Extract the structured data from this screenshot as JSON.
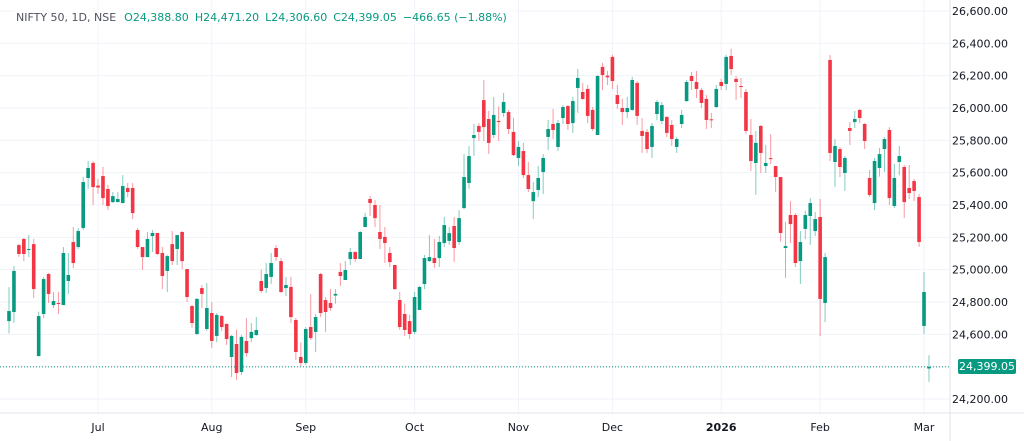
{
  "legend": {
    "symbol": "NIFTY 50, 1D, NSE",
    "open": "O24,388.80",
    "high": "H24,471.20",
    "low": "L24,306.60",
    "close": "C24,399.05",
    "change": "−466.65 (−1.88%)"
  },
  "last_price_label": "24,399.05",
  "colors": {
    "up": "#089981",
    "down": "#f23645",
    "grid": "#f0f3fa",
    "text": "#131722"
  },
  "chart_data": {
    "type": "candlestick",
    "title": "NIFTY 50, 1D, NSE",
    "ylim": [
      24200,
      26600
    ],
    "last_price": 24399.05,
    "yticks": [
      {
        "value": 26600,
        "label": "26,600.00"
      },
      {
        "value": 26400,
        "label": "26,400.00"
      },
      {
        "value": 26200,
        "label": "26,200.00"
      },
      {
        "value": 26000,
        "label": "26,000.00"
      },
      {
        "value": 25800,
        "label": "25,800.00"
      },
      {
        "value": 25600,
        "label": "25,600.00"
      },
      {
        "value": 25400,
        "label": "25,400.00"
      },
      {
        "value": 25200,
        "label": "25,200.00"
      },
      {
        "value": 25000,
        "label": "25,000.00"
      },
      {
        "value": 24800,
        "label": "24,800.00"
      },
      {
        "value": 24600,
        "label": "24,600.00"
      },
      {
        "value": 24200,
        "label": "24,200.00"
      }
    ],
    "xticks": [
      {
        "index": 18,
        "label": "Jul"
      },
      {
        "index": 41,
        "label": "Aug"
      },
      {
        "index": 60,
        "label": "Sep"
      },
      {
        "index": 82,
        "label": "Oct"
      },
      {
        "index": 103,
        "label": "Nov"
      },
      {
        "index": 122,
        "label": "Dec"
      },
      {
        "index": 144,
        "label": "2026",
        "bold": true
      },
      {
        "index": 164,
        "label": "Feb"
      },
      {
        "index": 185,
        "label": "Mar"
      }
    ],
    "ohlc_fields": [
      "open",
      "high",
      "low",
      "close"
    ],
    "candles": [
      [
        24682,
        24892,
        24606,
        24744
      ],
      [
        24738,
        25023,
        24670,
        24992
      ],
      [
        25152,
        25160,
        25080,
        25097
      ],
      [
        25190,
        25196,
        25053,
        25097
      ],
      [
        25122,
        25214,
        25078,
        25128
      ],
      [
        25158,
        25190,
        24825,
        24880
      ],
      [
        24466,
        24740,
        24460,
        24713
      ],
      [
        24726,
        24954,
        24700,
        24942
      ],
      [
        24973,
        24980,
        24794,
        24850
      ],
      [
        24781,
        24862,
        24763,
        24806
      ],
      [
        24794,
        24862,
        24726,
        24788
      ],
      [
        24781,
        25140,
        24781,
        25103
      ],
      [
        24930,
        25103,
        24850,
        24967
      ],
      [
        25171,
        25264,
        25010,
        25041
      ],
      [
        25140,
        25258,
        25128,
        25239
      ],
      [
        25258,
        25573,
        25245,
        25542
      ],
      [
        25567,
        25672,
        25500,
        25629
      ],
      [
        25660,
        25672,
        25400,
        25511
      ],
      [
        25520,
        25560,
        25470,
        25508
      ],
      [
        25579,
        25635,
        25400,
        25443
      ],
      [
        25499,
        25524,
        25369,
        25394
      ],
      [
        25418,
        25480,
        25412,
        25455
      ],
      [
        25418,
        25480,
        25418,
        25437
      ],
      [
        25412,
        25585,
        25412,
        25517
      ],
      [
        25505,
        25536,
        25449,
        25480
      ],
      [
        25505,
        25536,
        25313,
        25350
      ],
      [
        25245,
        25258,
        25128,
        25140
      ],
      [
        25140,
        25140,
        24998,
        25078
      ],
      [
        25078,
        25233,
        25078,
        25190
      ],
      [
        25208,
        25245,
        25109,
        25227
      ],
      [
        25227,
        25227,
        25091,
        25097
      ],
      [
        25103,
        25140,
        24880,
        24961
      ],
      [
        24992,
        25091,
        24862,
        25084
      ],
      [
        25158,
        25239,
        25029,
        25053
      ],
      [
        25128,
        25196,
        25029,
        25214
      ],
      [
        25233,
        25239,
        25004,
        25053
      ],
      [
        25004,
        25004,
        24800,
        24831
      ],
      [
        24775,
        24782,
        24640,
        24670
      ],
      [
        24602,
        24825,
        24596,
        24819
      ],
      [
        24886,
        24905,
        24763,
        24850
      ],
      [
        24633,
        24917,
        24621,
        24763
      ],
      [
        24732,
        24800,
        24515,
        24559
      ],
      [
        24590,
        24732,
        24552,
        24720
      ],
      [
        24713,
        24720,
        24621,
        24645
      ],
      [
        24664,
        24670,
        24534,
        24571
      ],
      [
        24460,
        24596,
        24336,
        24590
      ],
      [
        24540,
        24630,
        24318,
        24361
      ],
      [
        24367,
        24596,
        24348,
        24584
      ],
      [
        24559,
        24700,
        24460,
        24484
      ],
      [
        24577,
        24670,
        24552,
        24615
      ],
      [
        24596,
        24707,
        24590,
        24627
      ],
      [
        24930,
        25000,
        24856,
        24868
      ],
      [
        24887,
        25041,
        24856,
        24973
      ],
      [
        24955,
        25103,
        24911,
        25041
      ],
      [
        25134,
        25152,
        25053,
        25078
      ],
      [
        25053,
        25072,
        24856,
        24862
      ],
      [
        24886,
        24955,
        24837,
        24905
      ],
      [
        24893,
        24955,
        24670,
        24707
      ],
      [
        24689,
        24701,
        24442,
        24491
      ],
      [
        24460,
        24550,
        24404,
        24423
      ],
      [
        24423,
        24645,
        24411,
        24633
      ],
      [
        24645,
        24850,
        24565,
        24577
      ],
      [
        24615,
        24726,
        24491,
        24707
      ],
      [
        24973,
        24980,
        24707,
        24732
      ],
      [
        24812,
        24831,
        24615,
        24738
      ],
      [
        24794,
        24880,
        24745,
        24763
      ],
      [
        24840,
        24880,
        24790,
        24850
      ],
      [
        24986,
        25041,
        24899,
        24961
      ],
      [
        24936,
        25053,
        24936,
        24998
      ],
      [
        25066,
        25134,
        25029,
        25109
      ],
      [
        25109,
        25115,
        25047,
        25066
      ],
      [
        25066,
        25239,
        25066,
        25233
      ],
      [
        25264,
        25350,
        25264,
        25326
      ],
      [
        25437,
        25456,
        25332,
        25412
      ],
      [
        25400,
        25430,
        25264,
        25319
      ],
      [
        25233,
        25400,
        25128,
        25190
      ],
      [
        25202,
        25264,
        25041,
        25165
      ],
      [
        25103,
        25140,
        25016,
        25047
      ],
      [
        25029,
        25029,
        24874,
        24880
      ],
      [
        24812,
        24862,
        24627,
        24645
      ],
      [
        24726,
        24790,
        24590,
        24627
      ],
      [
        24682,
        24720,
        24571,
        24602
      ],
      [
        24615,
        24862,
        24602,
        24831
      ],
      [
        24751,
        24899,
        24751,
        24893
      ],
      [
        24911,
        25091,
        24880,
        25072
      ],
      [
        25053,
        25214,
        25047,
        25078
      ],
      [
        25072,
        25190,
        25010,
        25041
      ],
      [
        25072,
        25208,
        25016,
        25171
      ],
      [
        25165,
        25326,
        25140,
        25276
      ],
      [
        25178,
        25264,
        25153,
        25226
      ],
      [
        25270,
        25326,
        25047,
        25134
      ],
      [
        25171,
        25368,
        25153,
        25319
      ],
      [
        25381,
        25715,
        25375,
        25573
      ],
      [
        25536,
        25764,
        25500,
        25703
      ],
      [
        25814,
        25901,
        25703,
        25833
      ],
      [
        25889,
        25907,
        25796,
        25852
      ],
      [
        26049,
        26173,
        25796,
        25882
      ],
      [
        25932,
        25982,
        25716,
        25784
      ],
      [
        25833,
        26068,
        25815,
        25957
      ],
      [
        25920,
        26010,
        25796,
        25913
      ],
      [
        25969,
        26093,
        25944,
        26037
      ],
      [
        25975,
        25988,
        25839,
        25870
      ],
      [
        25852,
        25939,
        25703,
        25709
      ],
      [
        25691,
        25796,
        25641,
        25759
      ],
      [
        25734,
        25784,
        25567,
        25585
      ],
      [
        25585,
        25667,
        25480,
        25499
      ],
      [
        25424,
        25542,
        25313,
        25480
      ],
      [
        25493,
        25641,
        25449,
        25567
      ],
      [
        25604,
        25715,
        25468,
        25691
      ],
      [
        25821,
        25926,
        25740,
        25870
      ],
      [
        25901,
        25994,
        25808,
        25864
      ],
      [
        25759,
        25926,
        25734,
        25907
      ],
      [
        25938,
        26018,
        25901,
        26006
      ],
      [
        26012,
        26018,
        25864,
        25901
      ],
      [
        25907,
        26068,
        25846,
        26043
      ],
      [
        26124,
        26241,
        25969,
        26186
      ],
      [
        26099,
        26155,
        26050,
        26056
      ],
      [
        26118,
        26142,
        25907,
        25951
      ],
      [
        25988,
        26006,
        25858,
        25870
      ],
      [
        25833,
        26204,
        25833,
        26198
      ],
      [
        26254,
        26279,
        26111,
        26204
      ],
      [
        26200,
        26230,
        26142,
        26190
      ],
      [
        26316,
        26329,
        26118,
        26167
      ],
      [
        26080,
        26142,
        25994,
        26025
      ],
      [
        26000,
        26056,
        25895,
        25975
      ],
      [
        25975,
        26068,
        25938,
        26000
      ],
      [
        25988,
        26193,
        25982,
        26173
      ],
      [
        26155,
        26167,
        25895,
        25951
      ],
      [
        25858,
        25938,
        25722,
        25827
      ],
      [
        25852,
        25870,
        25722,
        25746
      ],
      [
        25759,
        25907,
        25691,
        25889
      ],
      [
        25963,
        26049,
        25926,
        26037
      ],
      [
        25920,
        26037,
        25901,
        26018
      ],
      [
        25944,
        25951,
        25820,
        25846
      ],
      [
        25895,
        25926,
        25765,
        25808
      ],
      [
        25759,
        25821,
        25722,
        25808
      ],
      [
        25901,
        25988,
        25876,
        25957
      ],
      [
        26043,
        26173,
        26037,
        26161
      ],
      [
        26198,
        26223,
        26111,
        26167
      ],
      [
        26161,
        26229,
        26062,
        26118
      ],
      [
        26111,
        26124,
        26000,
        26031
      ],
      [
        26056,
        26080,
        25870,
        25926
      ],
      [
        25930,
        25970,
        25876,
        25927
      ],
      [
        26006,
        26142,
        26000,
        26118
      ],
      [
        26161,
        26180,
        26111,
        26136
      ],
      [
        26149,
        26329,
        26111,
        26316
      ],
      [
        26322,
        26366,
        26204,
        26241
      ],
      [
        26180,
        26199,
        26050,
        26161
      ],
      [
        26136,
        26186,
        26062,
        26130
      ],
      [
        26099,
        26118,
        25840,
        25858
      ],
      [
        25833,
        25932,
        25610,
        25672
      ],
      [
        25660,
        25858,
        25463,
        25784
      ],
      [
        25889,
        25895,
        25598,
        25722
      ],
      [
        25641,
        25771,
        25598,
        25660
      ],
      [
        25690,
        25839,
        25654,
        25684
      ],
      [
        25641,
        25641,
        25480,
        25573
      ],
      [
        25573,
        25573,
        25173,
        25227
      ],
      [
        25134,
        25295,
        24949,
        25146
      ],
      [
        25338,
        25424,
        25165,
        25282
      ],
      [
        25338,
        25350,
        25016,
        25041
      ],
      [
        25053,
        25239,
        24911,
        25171
      ],
      [
        25252,
        25366,
        25190,
        25338
      ],
      [
        25332,
        25443,
        25153,
        25412
      ],
      [
        25239,
        25356,
        25208,
        25313
      ],
      [
        25326,
        25437,
        24590,
        24819
      ],
      [
        24794,
        25103,
        24676,
        25078
      ],
      [
        26297,
        26328,
        25672,
        25722
      ],
      [
        25666,
        25808,
        25511,
        25765
      ],
      [
        25746,
        25759,
        25573,
        25635
      ],
      [
        25598,
        25703,
        25487,
        25691
      ],
      [
        25876,
        25913,
        25771,
        25858
      ],
      [
        25913,
        25982,
        25876,
        25932
      ],
      [
        25988,
        25994,
        25907,
        25938
      ],
      [
        25901,
        25907,
        25746,
        25796
      ],
      [
        25567,
        25617,
        25449,
        25462
      ],
      [
        25412,
        25691,
        25369,
        25672
      ],
      [
        25629,
        25753,
        25576,
        25715
      ],
      [
        25746,
        25821,
        25604,
        25808
      ],
      [
        25864,
        25882,
        25400,
        25443
      ],
      [
        25394,
        25654,
        25381,
        25567
      ],
      [
        25666,
        25765,
        25585,
        25703
      ],
      [
        25635,
        25648,
        25319,
        25418
      ],
      [
        25505,
        25648,
        25437,
        25474
      ],
      [
        25548,
        25561,
        25424,
        25487
      ],
      [
        25449,
        25468,
        25140,
        25171
      ],
      [
        24652,
        24985,
        24602,
        24862
      ],
      [
        24388.8,
        24471.2,
        24306.6,
        24399.05
      ]
    ]
  }
}
